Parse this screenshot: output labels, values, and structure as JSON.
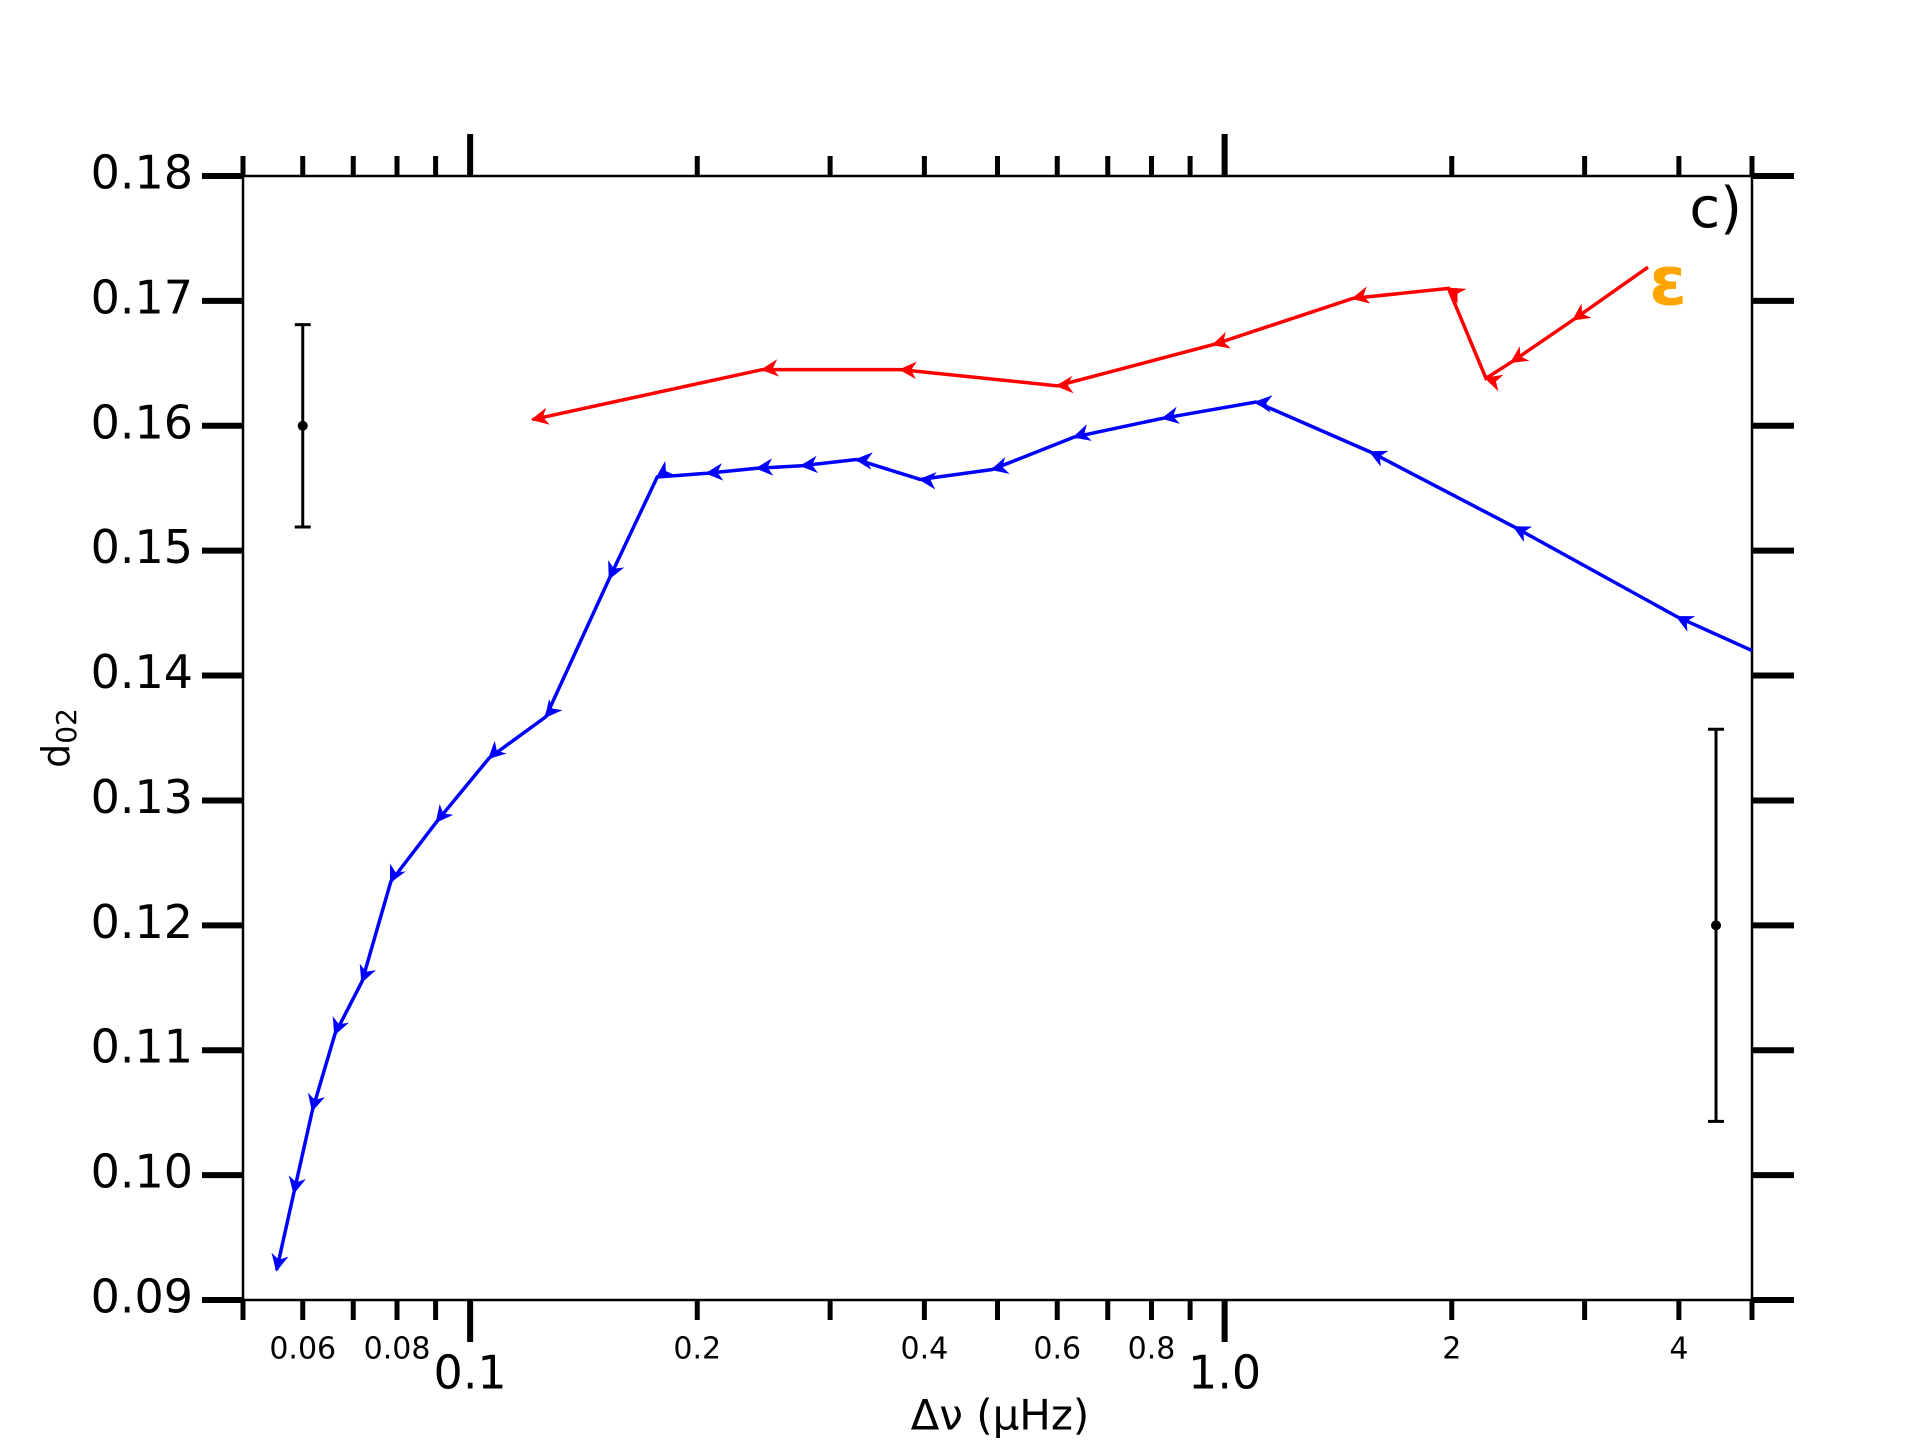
{
  "chart_data": {
    "type": "line",
    "xlabel": "Δν (μHz)",
    "ylabel": "d",
    "ylabel_sub": "02",
    "annotation": "c)",
    "symbol": "ε",
    "symbol_color": "#ffa500",
    "xscale": "log",
    "xlim": [
      0.05,
      5
    ],
    "ylim": [
      0.09,
      0.18
    ],
    "xticks": [
      0.1,
      {
        "value": 1,
        "label": "1.0"
      }
    ],
    "xminorticks_labeled": [
      0.06,
      0.08,
      0.2,
      0.4,
      0.6,
      0.8,
      2,
      4
    ],
    "xminorticks_unlabeled": [
      0.05,
      0.07,
      0.09,
      0.3,
      0.5,
      0.7,
      0.9,
      3,
      5
    ],
    "yticks": [
      0.09,
      {
        "value": 0.1,
        "label": "0.10"
      },
      0.11,
      0.12,
      0.13,
      0.14,
      0.15,
      0.16,
      0.17,
      0.18
    ],
    "series": [
      {
        "color": "#ff0000",
        "x": [
          3.64,
          2.9,
          2.4,
          2.22,
          1.98,
          1.48,
          0.966,
          0.6,
          0.372,
          0.244,
          0.121
        ],
        "values": [
          0.1727,
          0.1685,
          0.1651,
          0.1638,
          0.171,
          0.1702,
          0.1665,
          0.1632,
          0.1645,
          0.1645,
          0.1605
        ]
      },
      {
        "color": "#0000ff",
        "x": [
          5.0,
          3.98,
          2.42,
          1.56,
          1.1,
          0.828,
          0.632,
          0.492,
          0.395,
          0.325,
          0.275,
          0.24,
          0.206,
          0.177,
          0.153,
          0.126,
          0.106,
          0.0903,
          0.0785,
          0.0719,
          0.0662,
          0.0618,
          0.0584,
          0.0554
        ],
        "values": [
          0.142,
          0.1447,
          0.1519,
          0.1579,
          0.1619,
          0.1606,
          0.1591,
          0.1565,
          0.1557,
          0.1573,
          0.1568,
          0.1566,
          0.1562,
          0.1559,
          0.1478,
          0.1367,
          0.1334,
          0.1283,
          0.1235,
          0.1155,
          0.1113,
          0.1052,
          0.0986,
          0.0924
        ]
      }
    ],
    "error_bars": [
      {
        "x": 0.06,
        "y": 0.16,
        "yerr": 0.0081
      },
      {
        "x": 4.48,
        "y": 0.12,
        "yerr": 0.0157
      }
    ]
  }
}
